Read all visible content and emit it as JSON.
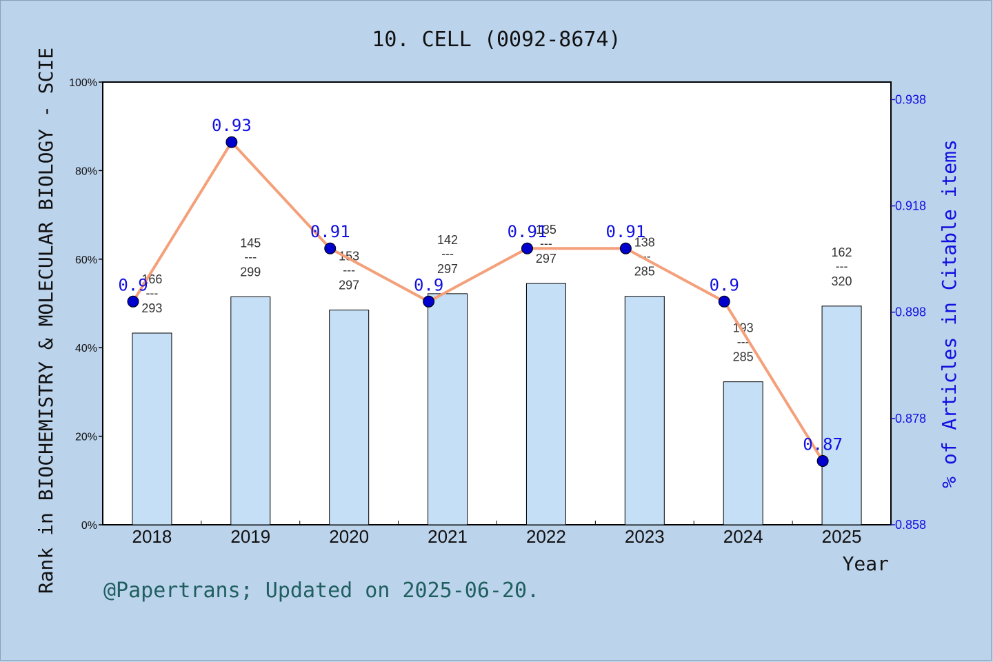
{
  "chart_data": {
    "type": "bar",
    "title": "10. CELL (0092-8674)",
    "xlabel": "Year",
    "ylabel": "Rank in BIOCHEMISTRY & MOLECULAR BIOLOGY - SCIE",
    "y2label": "% of Articles in Citable items",
    "categories": [
      "2018",
      "2019",
      "2020",
      "2021",
      "2022",
      "2023",
      "2024",
      "2025"
    ],
    "ylim": [
      0,
      100
    ],
    "yticks": [
      "0%",
      "20%",
      "40%",
      "60%",
      "80%",
      "100%"
    ],
    "y2lim": [
      0.858,
      0.9413
    ],
    "y2ticks": [
      "0.858",
      "0.878",
      "0.898",
      "0.918",
      "0.938"
    ],
    "series": [
      {
        "kind": "bar",
        "color": "#c5dff6",
        "values": [
          43.3,
          51.5,
          48.5,
          52.2,
          54.5,
          51.6,
          32.3,
          49.4
        ],
        "rank_labels": [
          {
            "rank": "166",
            "dash": "---",
            "total": "293"
          },
          {
            "rank": "145",
            "dash": "---",
            "total": "299"
          },
          {
            "rank": "153",
            "dash": "---",
            "total": "297"
          },
          {
            "rank": "142",
            "dash": "---",
            "total": "297"
          },
          {
            "rank": "135",
            "dash": "---",
            "total": "297"
          },
          {
            "rank": "138",
            "dash": "---",
            "total": "285"
          },
          {
            "rank": "193",
            "dash": "---",
            "total": "285"
          },
          {
            "rank": "162",
            "dash": "---",
            "total": "320"
          }
        ]
      },
      {
        "kind": "line",
        "color": "#f4a07a",
        "marker_color": "#0000cc",
        "values": [
          0.9,
          0.93,
          0.91,
          0.9,
          0.91,
          0.91,
          0.9,
          0.87
        ],
        "labels": [
          "0.9",
          "0.93",
          "0.91",
          "0.9",
          "0.91",
          "0.91",
          "0.9",
          "0.87"
        ]
      }
    ],
    "grid": false,
    "legend": "none"
  },
  "footer": "@Papertrans; Updated on 2025-06-20."
}
